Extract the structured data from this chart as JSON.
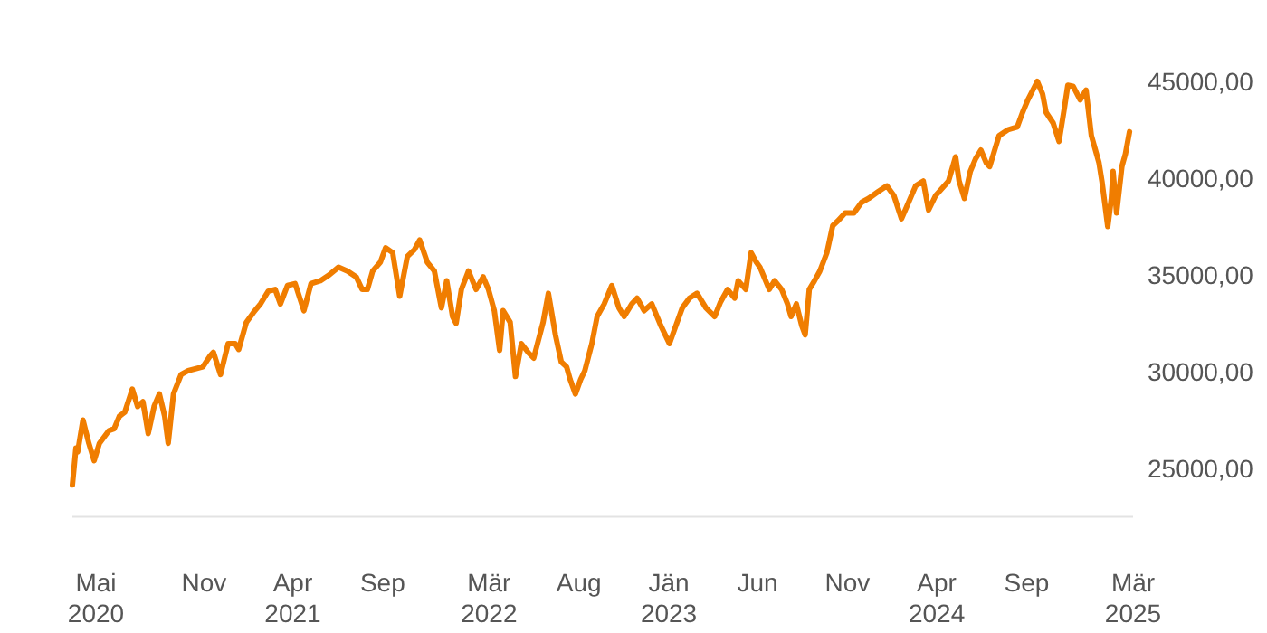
{
  "chart_data": {
    "type": "line",
    "color": "#f07d00",
    "line_style": "solid",
    "marker": "none",
    "grid": false,
    "xlim": [
      "2020-03-22",
      "2025-03-01"
    ],
    "ylim": [
      22500,
      45000
    ],
    "xticks": [
      {
        "value": "2020-05-01",
        "label": "Mai\n2020"
      },
      {
        "value": "2020-11-01",
        "label": "Nov"
      },
      {
        "value": "2021-04-01",
        "label": "Apr\n2021"
      },
      {
        "value": "2021-09-01",
        "label": "Sep"
      },
      {
        "value": "2022-03-01",
        "label": "Mär\n2022"
      },
      {
        "value": "2022-08-01",
        "label": "Aug"
      },
      {
        "value": "2023-01-01",
        "label": "Jän\n2023"
      },
      {
        "value": "2023-06-01",
        "label": "Jun"
      },
      {
        "value": "2023-11-01",
        "label": "Nov"
      },
      {
        "value": "2024-04-01",
        "label": "Apr\n2024"
      },
      {
        "value": "2024-09-01",
        "label": "Sep"
      },
      {
        "value": "2025-03-01",
        "label": "Mär\n2025"
      }
    ],
    "yticks": [
      {
        "value": 25000,
        "label": "25000,00"
      },
      {
        "value": 30000,
        "label": "30000,00"
      },
      {
        "value": 35000,
        "label": "35000,00"
      },
      {
        "value": 40000,
        "label": "40000,00"
      },
      {
        "value": 45000,
        "label": "45000,00"
      }
    ],
    "x": [
      "2020-03-22",
      "2020-03-28",
      "2020-03-31",
      "2020-04-09",
      "2020-04-19",
      "2020-04-28",
      "2020-05-07",
      "2020-05-23",
      "2020-06-01",
      "2020-06-10",
      "2020-06-19",
      "2020-07-02",
      "2020-07-11",
      "2020-07-20",
      "2020-07-29",
      "2020-08-08",
      "2020-08-17",
      "2020-08-26",
      "2020-09-01",
      "2020-09-10",
      "2020-09-23",
      "2020-10-05",
      "2020-10-17",
      "2020-10-30",
      "2020-11-11",
      "2020-11-17",
      "2020-11-29",
      "2020-12-12",
      "2020-12-24",
      "2020-12-30",
      "2021-01-12",
      "2021-01-24",
      "2021-02-05",
      "2021-02-18",
      "2021-03-02",
      "2021-03-11",
      "2021-03-23",
      "2021-04-05",
      "2021-04-20",
      "2021-05-02",
      "2021-05-18",
      "2021-06-02",
      "2021-06-18",
      "2021-07-03",
      "2021-07-18",
      "2021-07-28",
      "2021-08-06",
      "2021-08-15",
      "2021-08-28",
      "2021-09-06",
      "2021-09-18",
      "2021-09-30",
      "2021-10-13",
      "2021-10-25",
      "2021-11-03",
      "2021-11-16",
      "2021-11-28",
      "2021-12-10",
      "2021-12-19",
      "2021-12-29",
      "2022-01-04",
      "2022-01-13",
      "2022-01-25",
      "2022-02-07",
      "2022-02-19",
      "2022-02-28",
      "2022-03-10",
      "2022-03-19",
      "2022-03-25",
      "2022-04-06",
      "2022-04-15",
      "2022-04-25",
      "2022-05-07",
      "2022-05-16",
      "2022-06-01",
      "2022-06-10",
      "2022-06-22",
      "2022-07-02",
      "2022-07-11",
      "2022-07-17",
      "2022-07-26",
      "2022-08-04",
      "2022-08-11",
      "2022-08-23",
      "2022-09-01",
      "2022-09-13",
      "2022-09-26",
      "2022-10-08",
      "2022-10-17",
      "2022-10-30",
      "2022-11-08",
      "2022-11-20",
      "2022-12-03",
      "2022-12-18",
      "2023-01-02",
      "2023-01-15",
      "2023-01-24",
      "2023-02-05",
      "2023-02-18",
      "2023-03-05",
      "2023-03-20",
      "2023-03-30",
      "2023-04-11",
      "2023-04-23",
      "2023-04-29",
      "2023-05-12",
      "2023-05-21",
      "2023-05-30",
      "2023-06-05",
      "2023-06-21",
      "2023-06-30",
      "2023-07-12",
      "2023-07-22",
      "2023-07-28",
      "2023-08-06",
      "2023-08-15",
      "2023-08-21",
      "2023-08-28",
      "2023-09-06",
      "2023-09-15",
      "2023-09-27",
      "2023-10-07",
      "2023-10-16",
      "2023-10-28",
      "2023-11-12",
      "2023-11-25",
      "2023-12-07",
      "2023-12-23",
      "2024-01-07",
      "2024-01-19",
      "2024-02-01",
      "2024-02-13",
      "2024-02-25",
      "2024-03-09",
      "2024-03-18",
      "2024-03-30",
      "2024-04-08",
      "2024-04-21",
      "2024-05-03",
      "2024-05-09",
      "2024-05-18",
      "2024-05-28",
      "2024-06-06",
      "2024-06-15",
      "2024-06-24",
      "2024-06-30",
      "2024-07-16",
      "2024-07-31",
      "2024-08-16",
      "2024-08-25",
      "2024-09-03",
      "2024-09-19",
      "2024-09-28",
      "2024-10-04",
      "2024-10-16",
      "2024-10-26",
      "2024-11-04",
      "2024-11-10",
      "2024-11-19",
      "2024-12-01",
      "2024-12-11",
      "2024-12-20",
      "2025-01-02",
      "2025-01-07",
      "2025-01-17",
      "2025-01-23",
      "2025-01-26",
      "2025-02-01",
      "2025-02-10",
      "2025-02-16",
      "2025-02-23"
    ],
    "values": [
      24150,
      26050,
      25850,
      27500,
      26300,
      25400,
      26300,
      26950,
      27050,
      27700,
      27900,
      29100,
      28200,
      28450,
      26800,
      28200,
      28850,
      27700,
      26300,
      28850,
      29850,
      30050,
      30150,
      30250,
      30800,
      31000,
      29850,
      31450,
      31450,
      31150,
      32550,
      33050,
      33500,
      34150,
      34250,
      33500,
      34450,
      34550,
      33150,
      34550,
      34700,
      35000,
      35400,
      35200,
      34900,
      34250,
      34250,
      35200,
      35650,
      36400,
      36150,
      33900,
      35950,
      36300,
      36800,
      35650,
      35200,
      33300,
      34700,
      32850,
      32500,
      34250,
      35200,
      34250,
      34900,
      34250,
      33150,
      31100,
      33150,
      32550,
      29750,
      31450,
      30980,
      30700,
      32550,
      34050,
      31900,
      30500,
      30250,
      29600,
      28850,
      29600,
      30050,
      31450,
      32850,
      33500,
      34450,
      33300,
      32850,
      33500,
      33800,
      33150,
      33500,
      32400,
      31450,
      32550,
      33300,
      33800,
      34050,
      33300,
      32850,
      33600,
      34250,
      33800,
      34700,
      34250,
      36150,
      35650,
      35400,
      34250,
      34700,
      34250,
      33500,
      32850,
      33500,
      32400,
      31900,
      34250,
      34700,
      35200,
      36150,
      37550,
      37800,
      38200,
      38200,
      38750,
      38950,
      39300,
      39600,
      39100,
      37900,
      38750,
      39600,
      39850,
      38350,
      39100,
      39400,
      39850,
      41100,
      39850,
      38950,
      40350,
      41000,
      41450,
      40800,
      40600,
      42200,
      42500,
      42650,
      43400,
      44050,
      45000,
      44350,
      43400,
      42850,
      41900,
      43600,
      44800,
      44750,
      44050,
      44550,
      42200,
      40800,
      39850,
      37500,
      38950,
      40350,
      38200,
      40600,
      41250,
      42400
    ]
  }
}
